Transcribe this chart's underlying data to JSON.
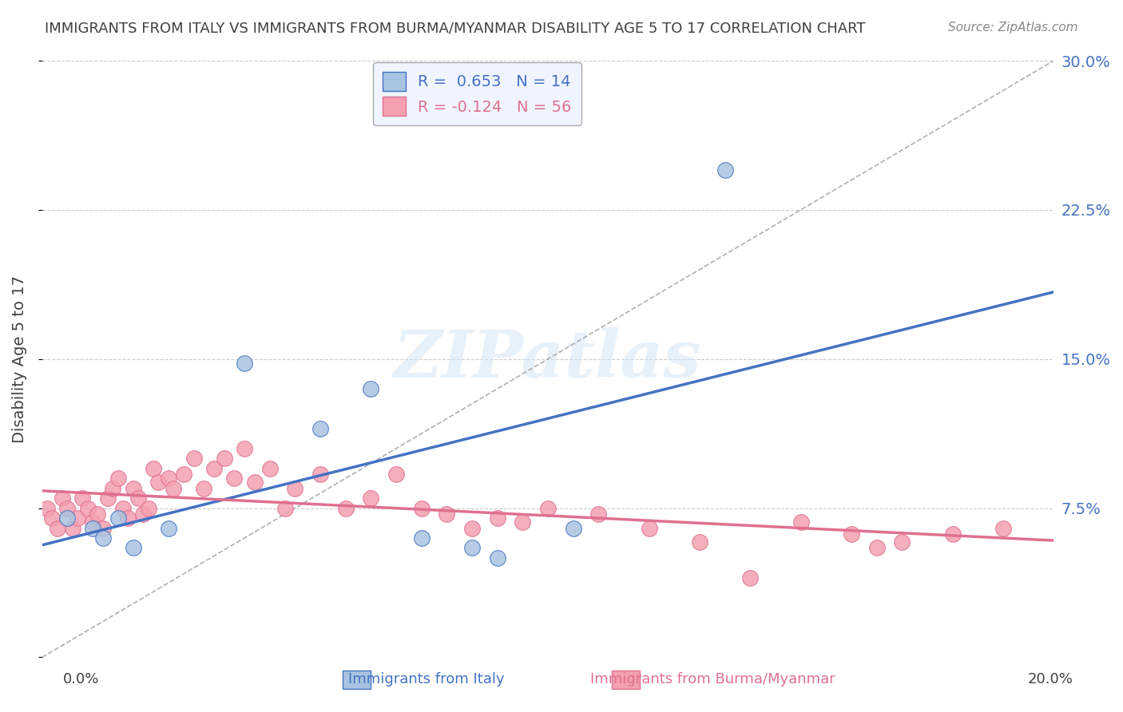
{
  "title": "IMMIGRANTS FROM ITALY VS IMMIGRANTS FROM BURMA/MYANMAR DISABILITY AGE 5 TO 17 CORRELATION CHART",
  "source": "Source: ZipAtlas.com",
  "ylabel": "Disability Age 5 to 17",
  "xlim": [
    0.0,
    0.2
  ],
  "ylim": [
    0.0,
    0.3
  ],
  "yticks": [
    0.0,
    0.075,
    0.15,
    0.225,
    0.3
  ],
  "ytick_labels": [
    "",
    "7.5%",
    "15.0%",
    "22.5%",
    "30.0%"
  ],
  "legend_italy_R": "0.653",
  "legend_italy_N": "14",
  "legend_burma_R": "-0.124",
  "legend_burma_N": "56",
  "italy_color": "#a8c4e0",
  "burma_color": "#f4a0b0",
  "italy_line_color": "#4472c4",
  "burma_line_color": "#e07090",
  "ref_line_color": "#b0b0b0",
  "italy_scatter_x": [
    0.005,
    0.01,
    0.012,
    0.015,
    0.018,
    0.025,
    0.04,
    0.055,
    0.065,
    0.075,
    0.085,
    0.09,
    0.105,
    0.135
  ],
  "italy_scatter_y": [
    0.07,
    0.065,
    0.06,
    0.07,
    0.055,
    0.065,
    0.148,
    0.115,
    0.135,
    0.06,
    0.055,
    0.05,
    0.065,
    0.245
  ],
  "burma_scatter_x": [
    0.001,
    0.002,
    0.003,
    0.004,
    0.005,
    0.006,
    0.007,
    0.008,
    0.009,
    0.01,
    0.011,
    0.012,
    0.013,
    0.014,
    0.015,
    0.016,
    0.017,
    0.018,
    0.019,
    0.02,
    0.021,
    0.022,
    0.023,
    0.025,
    0.026,
    0.028,
    0.03,
    0.032,
    0.034,
    0.036,
    0.038,
    0.04,
    0.042,
    0.045,
    0.048,
    0.05,
    0.055,
    0.06,
    0.065,
    0.07,
    0.075,
    0.08,
    0.085,
    0.09,
    0.095,
    0.1,
    0.11,
    0.12,
    0.13,
    0.14,
    0.15,
    0.16,
    0.165,
    0.17,
    0.18,
    0.19
  ],
  "burma_scatter_y": [
    0.075,
    0.07,
    0.065,
    0.08,
    0.075,
    0.065,
    0.07,
    0.08,
    0.075,
    0.068,
    0.072,
    0.065,
    0.08,
    0.085,
    0.09,
    0.075,
    0.07,
    0.085,
    0.08,
    0.072,
    0.075,
    0.095,
    0.088,
    0.09,
    0.085,
    0.092,
    0.1,
    0.085,
    0.095,
    0.1,
    0.09,
    0.105,
    0.088,
    0.095,
    0.075,
    0.085,
    0.092,
    0.075,
    0.08,
    0.092,
    0.075,
    0.072,
    0.065,
    0.07,
    0.068,
    0.075,
    0.072,
    0.065,
    0.058,
    0.04,
    0.068,
    0.062,
    0.055,
    0.058,
    0.062,
    0.065
  ],
  "watermark": "ZIPatlas",
  "background_color": "#ffffff",
  "grid_color": "#cccccc",
  "title_color": "#404040",
  "axis_label_color": "#404040",
  "right_tick_color": "#4472c4",
  "legend_box_color": "#f0f4ff"
}
